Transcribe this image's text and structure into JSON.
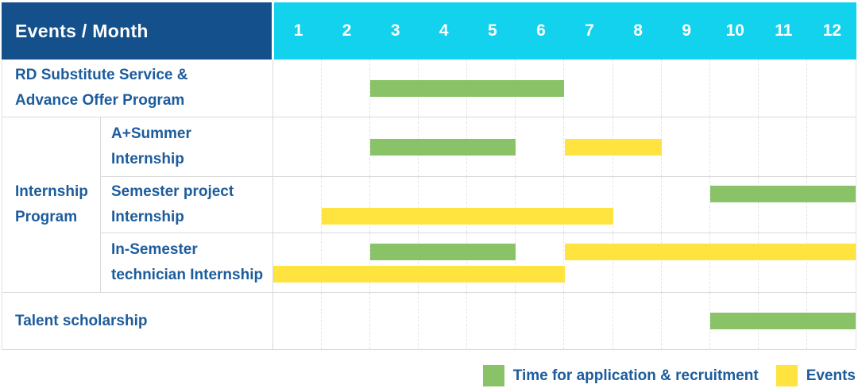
{
  "colors": {
    "header_bg": "#14518c",
    "months_bg": "#12d2ee",
    "label_text": "#1c5c9d",
    "application_bar_green": "#8ac268",
    "events_bar_yellow": "#ffe33f",
    "row_border": "#d9d9d9",
    "grid_line": "#e4e4e4"
  },
  "table": {
    "corner_title": "Events / Month",
    "months": [
      "1",
      "2",
      "3",
      "4",
      "5",
      "6",
      "7",
      "8",
      "9",
      "10",
      "11",
      "12"
    ]
  },
  "group": {
    "label": "Internship\nProgram"
  },
  "rows": [
    {
      "id": "rd-substitute",
      "label": "RD Substitute Service &\nAdvance Offer Program",
      "bars": [
        {
          "type": "green",
          "start": 3,
          "end": 6,
          "line": 0
        }
      ]
    },
    {
      "id": "a-plus-summer",
      "label": "A+Summer\nInternship",
      "group": "Internship Program",
      "bars": [
        {
          "type": "green",
          "start": 3,
          "end": 5,
          "line": 0
        },
        {
          "type": "yellow",
          "start": 7,
          "end": 8,
          "line": 0
        }
      ]
    },
    {
      "id": "semester-project",
      "label": "Semester project\nInternship",
      "group": "Internship Program",
      "bars": [
        {
          "type": "green",
          "start": 10,
          "end": 12,
          "line": 0
        },
        {
          "type": "yellow",
          "start": 2,
          "end": 7,
          "line": 1
        }
      ]
    },
    {
      "id": "in-semester-technician",
      "label": "In-Semester\ntechnician Internship",
      "group": "Internship Program",
      "bars": [
        {
          "type": "green",
          "start": 3,
          "end": 5,
          "line": 0
        },
        {
          "type": "yellow",
          "start": 7,
          "end": 12,
          "line": 0
        },
        {
          "type": "yellow",
          "start": 1,
          "end": 6,
          "line": 1
        }
      ]
    },
    {
      "id": "talent-scholarship",
      "label": "Talent scholarship",
      "bars": [
        {
          "type": "green",
          "start": 10,
          "end": 12,
          "line": 0
        }
      ]
    }
  ],
  "legend": {
    "items": [
      {
        "label": "Time for application & recruitment",
        "series": "application",
        "color": "#8ac268"
      },
      {
        "label": "Events",
        "series": "events",
        "color": "#ffe33f"
      }
    ]
  },
  "chart_data": {
    "type": "bar",
    "subtype": "gantt",
    "title": "Events / Month",
    "xlabel": "Month",
    "x_ticks": [
      1,
      2,
      3,
      4,
      5,
      6,
      7,
      8,
      9,
      10,
      11,
      12
    ],
    "x_range": [
      1,
      12
    ],
    "grid": true,
    "legend_position": "bottom-right",
    "rows": [
      "RD Substitute Service & Advance Offer Program",
      "A+Summer Internship",
      "Semester project Internship",
      "In-Semester technician Internship",
      "Talent scholarship"
    ],
    "row_groups": [
      {
        "label": "Internship Program",
        "rows": [
          "A+Summer Internship",
          "Semester project Internship",
          "In-Semester technician Internship"
        ]
      }
    ],
    "series": [
      {
        "name": "Time for application & recruitment",
        "color": "#8ac268",
        "intervals": [
          {
            "row": "RD Substitute Service & Advance Offer Program",
            "start_month": 3,
            "end_month": 6
          },
          {
            "row": "A+Summer Internship",
            "start_month": 3,
            "end_month": 5
          },
          {
            "row": "Semester project Internship",
            "start_month": 10,
            "end_month": 12
          },
          {
            "row": "In-Semester technician Internship",
            "start_month": 3,
            "end_month": 5
          },
          {
            "row": "Talent scholarship",
            "start_month": 10,
            "end_month": 12
          }
        ]
      },
      {
        "name": "Events",
        "color": "#ffe33f",
        "intervals": [
          {
            "row": "A+Summer Internship",
            "start_month": 7,
            "end_month": 8
          },
          {
            "row": "Semester project Internship",
            "start_month": 2,
            "end_month": 7
          },
          {
            "row": "In-Semester technician Internship",
            "start_month": 7,
            "end_month": 12
          },
          {
            "row": "In-Semester technician Internship",
            "start_month": 1,
            "end_month": 6
          }
        ]
      }
    ]
  }
}
